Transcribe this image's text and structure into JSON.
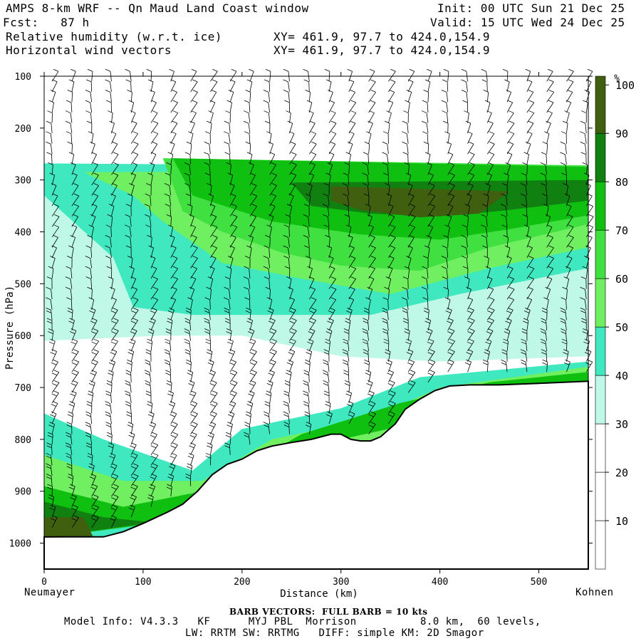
{
  "header": {
    "line1_left": "AMPS 8-km WRF -- Qn Maud Land Coast window",
    "line2_left": "Fcst:   87 h",
    "line3_left": "Relative humidity (w.r.t. ice)",
    "line4_left": "Horizontal wind vectors",
    "line1_right": "Init: 00 UTC Sun 21 Dec 25",
    "line2_right": "Valid: 15 UTC Wed 24 Dec 25",
    "line3_mid": "XY= 461.9, 97.7 to 424.0,154.9",
    "line4_mid": "XY= 461.9, 97.7 to 424.0,154.9"
  },
  "footer": {
    "left_end": "Neumayer",
    "right_end": "Kohnen",
    "barb_note": "BARB VECTORS:  FULL BARB = 10 kts",
    "model_info": "Model Info: V4.3.3   KF      MYJ PBL  Morrison          8.0 km,  60 levels,",
    "physics": "LW: RRTM SW: RRTMG   DIFF: simple KM: 2D Smagor"
  },
  "chart_data": {
    "type": "heatmap",
    "title": "Relative humidity (w.r.t. ice) cross-section with horizontal wind vectors",
    "xlabel": "Distance (km)",
    "ylabel": "Pressure (hPa)",
    "xlim": [
      0,
      550
    ],
    "ylim": [
      1050,
      100
    ],
    "x_ticks": [
      0,
      100,
      200,
      300,
      400,
      500
    ],
    "y_ticks": [
      100,
      200,
      300,
      400,
      500,
      600,
      700,
      800,
      900,
      1000
    ],
    "colorbar": {
      "unit": "%",
      "levels": [
        10,
        20,
        30,
        40,
        50,
        60,
        70,
        80,
        90,
        100
      ],
      "colors": [
        "#ffffff",
        "#ffffff",
        "#ffffff",
        "#c0f8e8",
        "#40e8c0",
        "#70f060",
        "#40e040",
        "#10c010",
        "#108010",
        "#406010"
      ]
    },
    "terrain_pressure_hPa": [
      [
        0,
        988
      ],
      [
        20,
        988
      ],
      [
        40,
        988
      ],
      [
        60,
        988
      ],
      [
        80,
        978
      ],
      [
        100,
        962
      ],
      [
        125,
        940
      ],
      [
        140,
        925
      ],
      [
        155,
        900
      ],
      [
        170,
        868
      ],
      [
        185,
        848
      ],
      [
        200,
        838
      ],
      [
        215,
        822
      ],
      [
        230,
        813
      ],
      [
        250,
        806
      ],
      [
        270,
        800
      ],
      [
        290,
        790
      ],
      [
        300,
        790
      ],
      [
        310,
        800
      ],
      [
        320,
        803
      ],
      [
        330,
        803
      ],
      [
        340,
        795
      ],
      [
        355,
        770
      ],
      [
        365,
        742
      ],
      [
        380,
        722
      ],
      [
        395,
        706
      ],
      [
        410,
        697
      ],
      [
        430,
        695
      ],
      [
        460,
        695
      ],
      [
        500,
        692
      ],
      [
        550,
        688
      ]
    ]
  }
}
